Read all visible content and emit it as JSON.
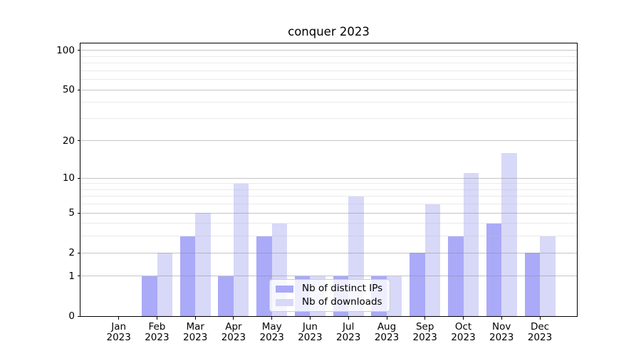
{
  "title": "conquer 2023",
  "chart_data": {
    "type": "bar",
    "title": "conquer 2023",
    "categories": [
      "Jan 2023",
      "Feb 2023",
      "Mar 2023",
      "Apr 2023",
      "May 2023",
      "Jun 2023",
      "Jul 2023",
      "Aug 2023",
      "Sep 2023",
      "Oct 2023",
      "Nov 2023",
      "Dec 2023"
    ],
    "series": [
      {
        "name": "Nb of distinct IPs",
        "color": "#aaaaf8",
        "values": [
          0,
          1,
          3,
          1,
          3,
          1,
          1,
          1,
          2,
          3,
          4,
          2
        ]
      },
      {
        "name": "Nb of downloads",
        "color": "#d8d8f8",
        "values": [
          0,
          2,
          5,
          9,
          4,
          1,
          7,
          1,
          6,
          11,
          16,
          3
        ]
      }
    ],
    "xlabel": "",
    "ylabel": "",
    "yscale": "log1p",
    "ylim": [
      0,
      113
    ],
    "yticks": [
      0,
      1,
      2,
      5,
      10,
      20,
      50,
      100
    ],
    "y_minor_ticks": [
      3,
      4,
      6,
      7,
      8,
      9,
      30,
      40,
      60,
      70,
      80,
      90
    ],
    "grid": "horizontal major and minor gridlines, drawn above bars",
    "legend_position": "inside axes, lower center"
  }
}
